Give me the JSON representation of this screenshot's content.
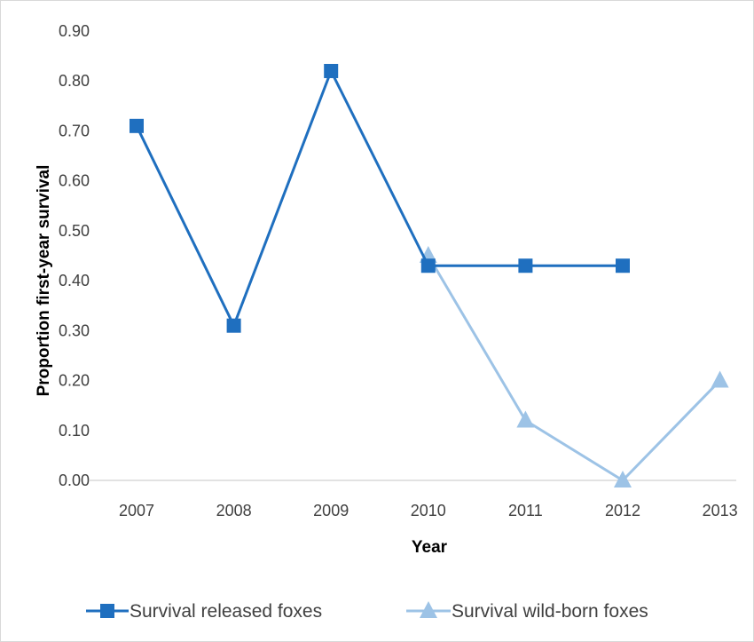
{
  "chart_data": {
    "type": "line",
    "title": "",
    "xlabel": "Year",
    "ylabel": "Proportion first-year survival",
    "categories": [
      "2007",
      "2008",
      "2009",
      "2010",
      "2011",
      "2012",
      "2013"
    ],
    "y_ticks": [
      "0.00",
      "0.10",
      "0.20",
      "0.30",
      "0.40",
      "0.50",
      "0.60",
      "0.70",
      "0.80",
      "0.90"
    ],
    "ylim": [
      0,
      0.9
    ],
    "grid": false,
    "legend_position": "bottom",
    "series": [
      {
        "name": "Survival released foxes",
        "marker": "square",
        "color": "#1f6fbf",
        "values": [
          0.71,
          0.31,
          0.82,
          0.43,
          0.43,
          0.43,
          null
        ]
      },
      {
        "name": "Survival wild-born foxes",
        "marker": "triangle",
        "color": "#9dc3e6",
        "values": [
          null,
          null,
          null,
          0.45,
          0.12,
          0.0,
          0.2
        ]
      }
    ]
  }
}
